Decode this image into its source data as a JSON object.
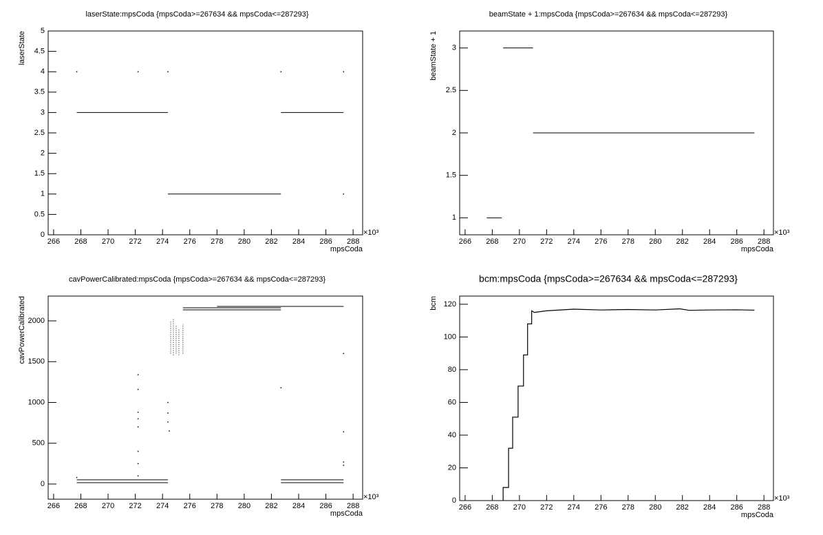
{
  "chart_data": [
    {
      "type": "scatter",
      "title": "laserState:mpsCoda {mpsCoda>=267634 && mpsCoda<=287293}",
      "x_label": "mpsCoda",
      "y_label": "laserState",
      "x_multiplier": "×10³",
      "xlim": [
        265.6,
        288.7
      ],
      "xticks": [
        266,
        268,
        270,
        272,
        274,
        276,
        278,
        280,
        282,
        284,
        286,
        288
      ],
      "ylim": [
        0,
        5
      ],
      "yticks": [
        0,
        0.5,
        1,
        1.5,
        2,
        2.5,
        3,
        3.5,
        4,
        4.5,
        5
      ],
      "color": "#000000",
      "segments": [
        {
          "x": [
            267.7,
            274.4
          ],
          "y": [
            3,
            3
          ]
        },
        {
          "x": [
            274.4,
            282.7
          ],
          "y": [
            1,
            1
          ]
        },
        {
          "x": [
            282.7,
            287.3
          ],
          "y": [
            3,
            3
          ]
        }
      ],
      "x": [
        267.7,
        272.2,
        274.4,
        282.7,
        287.3,
        287.3
      ],
      "y": [
        4,
        4,
        4,
        4,
        4,
        1
      ]
    },
    {
      "type": "scatter",
      "title": "beamState + 1:mpsCoda {mpsCoda>=267634 && mpsCoda<=287293}",
      "x_label": "mpsCoda",
      "y_label": "beamState + 1",
      "x_multiplier": "×10³",
      "xlim": [
        265.6,
        288.7
      ],
      "xticks": [
        266,
        268,
        270,
        272,
        274,
        276,
        278,
        280,
        282,
        284,
        286,
        288
      ],
      "ylim": [
        0.8,
        3.2
      ],
      "yticks": [
        1,
        1.5,
        2,
        2.5,
        3
      ],
      "color": "#000000",
      "segments": [
        {
          "x": [
            267.6,
            268.7
          ],
          "y": [
            1,
            1
          ]
        },
        {
          "x": [
            268.8,
            271.0
          ],
          "y": [
            3,
            3
          ]
        },
        {
          "x": [
            271.0,
            287.3
          ],
          "y": [
            2,
            2
          ]
        }
      ],
      "x": [],
      "y": []
    },
    {
      "type": "scatter",
      "title": "cavPowerCalibrated:mpsCoda {mpsCoda>=267634 && mpsCoda<=287293}",
      "x_label": "mpsCoda",
      "y_label": "cavPowerCalibrated",
      "x_multiplier": "×10³",
      "xlim": [
        265.6,
        288.7
      ],
      "xticks": [
        266,
        268,
        270,
        272,
        274,
        276,
        278,
        280,
        282,
        284,
        286,
        288
      ],
      "ylim": [
        -186,
        2304
      ],
      "yticks": [
        0,
        500,
        1000,
        1500,
        2000
      ],
      "color": "#000000",
      "segments": [
        {
          "x": [
            267.7,
            274.4
          ],
          "y": [
            51,
            51
          ]
        },
        {
          "x": [
            267.7,
            274.4
          ],
          "y": [
            17,
            17
          ]
        },
        {
          "x": [
            282.7,
            287.3
          ],
          "y": [
            51,
            51
          ]
        },
        {
          "x": [
            282.7,
            287.3
          ],
          "y": [
            17,
            17
          ]
        },
        {
          "x": [
            275.5,
            282.7
          ],
          "y": [
            2160,
            2160
          ]
        },
        {
          "x": [
            275.5,
            282.7
          ],
          "y": [
            2135,
            2135
          ]
        },
        {
          "x": [
            278.0,
            287.3
          ],
          "y": [
            2177,
            2177
          ]
        },
        {
          "x": [
            274.6,
            274.6
          ],
          "y": [
            1600,
            2000
          ]
        },
        {
          "x": [
            274.8,
            274.8
          ],
          "y": [
            1580,
            2030
          ]
        },
        {
          "x": [
            275.0,
            275.0
          ],
          "y": [
            1600,
            1950
          ]
        },
        {
          "x": [
            275.2,
            275.2
          ],
          "y": [
            1580,
            1900
          ]
        },
        {
          "x": [
            275.5,
            275.5
          ],
          "y": [
            1600,
            1960
          ]
        }
      ],
      "x": [
        272.2,
        272.2,
        272.2,
        272.2,
        272.2,
        272.2,
        272.2,
        272.2,
        274.4,
        274.4,
        274.4,
        274.5,
        282.7,
        287.3,
        287.3,
        287.3,
        267.7,
        287.3
      ],
      "y": [
        1340,
        1160,
        880,
        800,
        700,
        400,
        250,
        100,
        1000,
        870,
        760,
        650,
        1180,
        1600,
        640,
        270,
        80,
        230
      ]
    },
    {
      "type": "line",
      "title": "bcm:mpsCoda {mpsCoda>=267634 && mpsCoda<=287293}",
      "x_label": "mpsCoda",
      "y_label": "bcm",
      "x_multiplier": "×10³",
      "xlim": [
        265.6,
        288.7
      ],
      "xticks": [
        266,
        268,
        270,
        272,
        274,
        276,
        278,
        280,
        282,
        284,
        286,
        288
      ],
      "ylim": [
        0,
        125
      ],
      "yticks": [
        0,
        20,
        40,
        60,
        80,
        100,
        120
      ],
      "color": "#000000",
      "x": [
        268.8,
        268.8,
        269.2,
        269.2,
        269.5,
        269.5,
        269.9,
        269.9,
        270.3,
        270.3,
        270.6,
        270.6,
        270.9,
        270.9,
        271.1,
        272,
        274,
        276,
        278,
        280,
        281.8,
        282.5,
        284,
        286,
        287.3
      ],
      "y": [
        0,
        8,
        8,
        32,
        32,
        51,
        51,
        70,
        70,
        89,
        89,
        108,
        108,
        116,
        115,
        116,
        117,
        116.5,
        116.8,
        116.5,
        117.2,
        116.3,
        116.5,
        116.6,
        116.4
      ]
    }
  ]
}
